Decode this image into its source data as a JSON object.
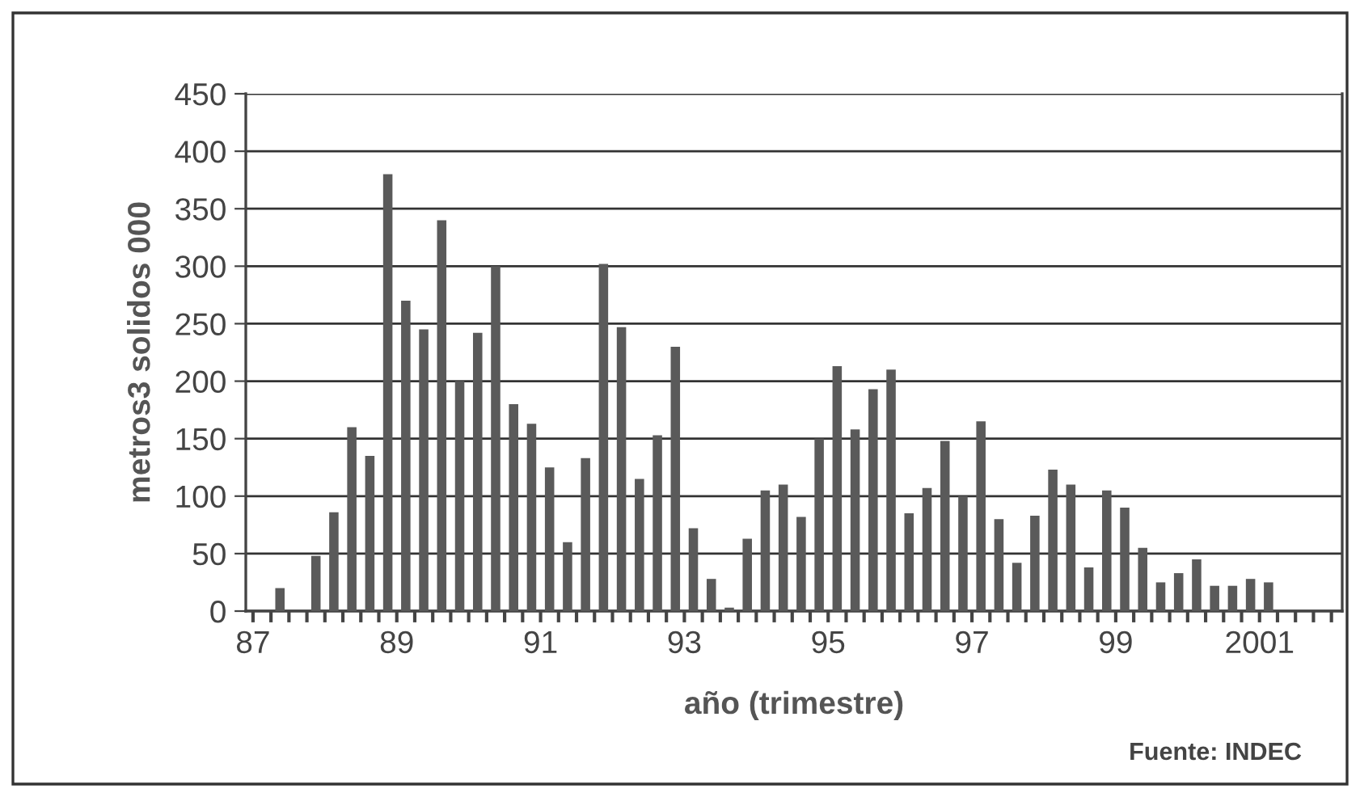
{
  "chart_data": {
    "type": "bar",
    "xlabel": "año (trimestre)",
    "ylabel": "metros3 solidos 000",
    "annotations": [
      "Fuente: INDEC"
    ],
    "x": [
      1987.375,
      1987.875,
      1988.125,
      1988.375,
      1988.625,
      1988.875,
      1989.125,
      1989.375,
      1989.625,
      1989.875,
      1990.125,
      1990.375,
      1990.625,
      1990.875,
      1991.125,
      1991.375,
      1991.625,
      1991.875,
      1992.125,
      1992.375,
      1992.625,
      1992.875,
      1993.125,
      1993.375,
      1993.625,
      1993.875,
      1994.125,
      1994.375,
      1994.625,
      1994.875,
      1995.125,
      1995.375,
      1995.625,
      1995.875,
      1996.125,
      1996.375,
      1996.625,
      1996.875,
      1997.125,
      1997.375,
      1997.625,
      1997.875,
      1998.125,
      1998.375,
      1998.625,
      1998.875,
      1999.125,
      1999.375,
      1999.625,
      1999.875,
      2000.125,
      2000.375,
      2000.625,
      2000.875,
      2001.125
    ],
    "values": [
      20,
      48,
      86,
      160,
      135,
      380,
      270,
      245,
      340,
      200,
      242,
      300,
      180,
      163,
      125,
      60,
      133,
      302,
      247,
      115,
      153,
      230,
      72,
      28,
      3,
      63,
      105,
      110,
      82,
      150,
      213,
      158,
      193,
      210,
      85,
      107,
      148,
      100,
      165,
      80,
      42,
      83,
      123,
      110,
      38,
      105,
      90,
      55,
      25,
      33,
      45,
      22,
      22,
      28,
      25
    ],
    "color": "#5a5a5a",
    "xlim": [
      1986.9,
      2002.15
    ],
    "xticks": [
      {
        "value": 1987,
        "label": "87"
      },
      {
        "value": 1989,
        "label": "89"
      },
      {
        "value": 1991,
        "label": "91"
      },
      {
        "value": 1993,
        "label": "93"
      },
      {
        "value": 1995,
        "label": "95"
      },
      {
        "value": 1997,
        "label": "97"
      },
      {
        "value": 1999,
        "label": "99"
      },
      {
        "value": 2001,
        "label": "2001"
      }
    ],
    "ylim": [
      0,
      450
    ],
    "yticks": [
      0,
      50,
      100,
      150,
      200,
      250,
      300,
      350,
      400,
      450
    ],
    "grid": "y"
  }
}
